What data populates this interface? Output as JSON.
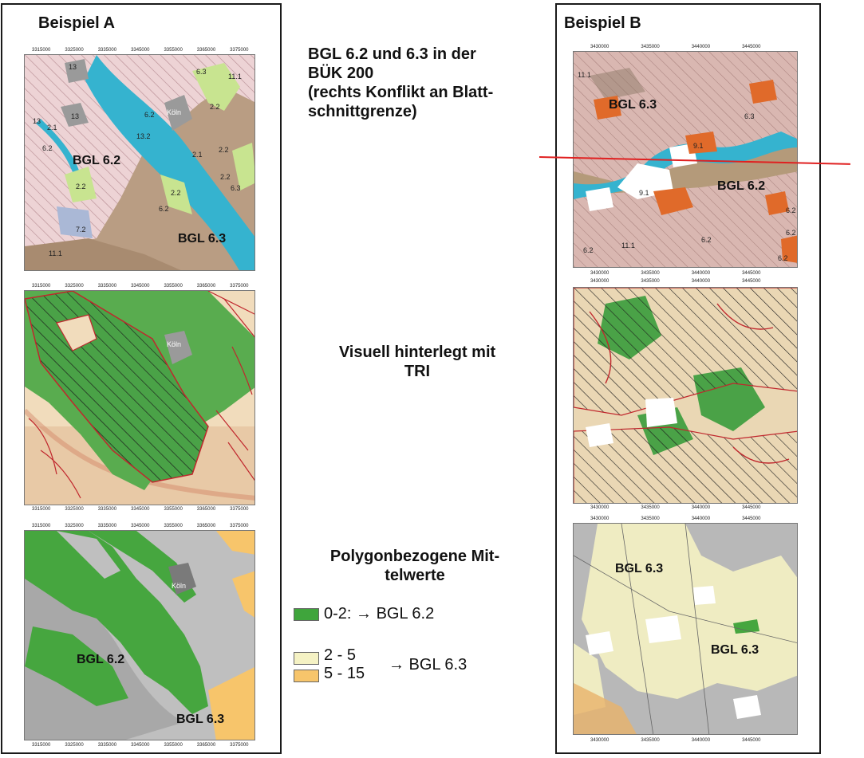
{
  "panel_a": {
    "heading": "Beispiel A",
    "map1": {
      "labels": {
        "bgl62": "BGL 6.2",
        "bgl63": "BGL 6.3",
        "u13a": "13",
        "u13b": "13",
        "u13c": "13",
        "u132": "13.2",
        "u21a": "2.1",
        "u21b": "2.1",
        "u22a": "2.2",
        "u22b": "2.2",
        "u22c": "2.2",
        "u22d": "2.2",
        "u22e": "2.2",
        "u62a": "6.2",
        "u62b": "6.2",
        "u62c": "6.2",
        "u63a": "6.3",
        "u63b": "6.3",
        "u72": "7.2",
        "u111a": "11.1",
        "u111b": "11.1",
        "koeln": "Köln"
      }
    },
    "map2": {
      "labels": {
        "koeln": "Köln"
      }
    },
    "map3": {
      "labels": {
        "bgl62": "BGL 6.2",
        "bgl63": "BGL 6.3",
        "koeln": "Köln"
      }
    },
    "x_ticks": [
      "3315000",
      "3325000",
      "3335000",
      "3345000",
      "3355000",
      "3365000",
      "3375000"
    ]
  },
  "panel_b": {
    "heading": "Beispiel B",
    "map1": {
      "labels": {
        "bgl63": "BGL 6.3",
        "bgl62": "BGL 6.2",
        "u111a": "11.1",
        "u111b": "11.1",
        "u63": "6.3",
        "u91a": "9.1",
        "u91b": "9.1",
        "u62a": "6.2",
        "u62b": "6.2",
        "u62c": "6.2",
        "u62d": "6.2",
        "u62e": "6.2"
      }
    },
    "map3": {
      "labels": {
        "bgl63a": "BGL 6.3",
        "bgl63b": "BGL 6.3"
      }
    },
    "x_ticks": [
      "3430000",
      "3435000",
      "3440000",
      "3445000"
    ]
  },
  "middle": {
    "text1": [
      "BGL 6.2 und 6.3 in der",
      "BÜK 200",
      "(rechts Konflikt an Blatt-",
      "schnittgrenze)"
    ],
    "text2": [
      "Visuell hinterlegt mit",
      "TRI"
    ],
    "text3": [
      "Polygonbezogene Mit-",
      "telwerte"
    ],
    "legend": {
      "green_label": "0-2: → BGL 6.2",
      "range1": "2 - 5",
      "range2": "5 - 15",
      "result": "→ BGL 6.3"
    }
  },
  "colors": {
    "green": "#3fa53c",
    "light_yellow": "#f5f2c4",
    "orange": "#f7c56b",
    "hatch_pink": "#e8c4c8",
    "river_blue": "#35b3cf",
    "soil_brown": "#b79a7f",
    "red_line": "#e02020"
  }
}
